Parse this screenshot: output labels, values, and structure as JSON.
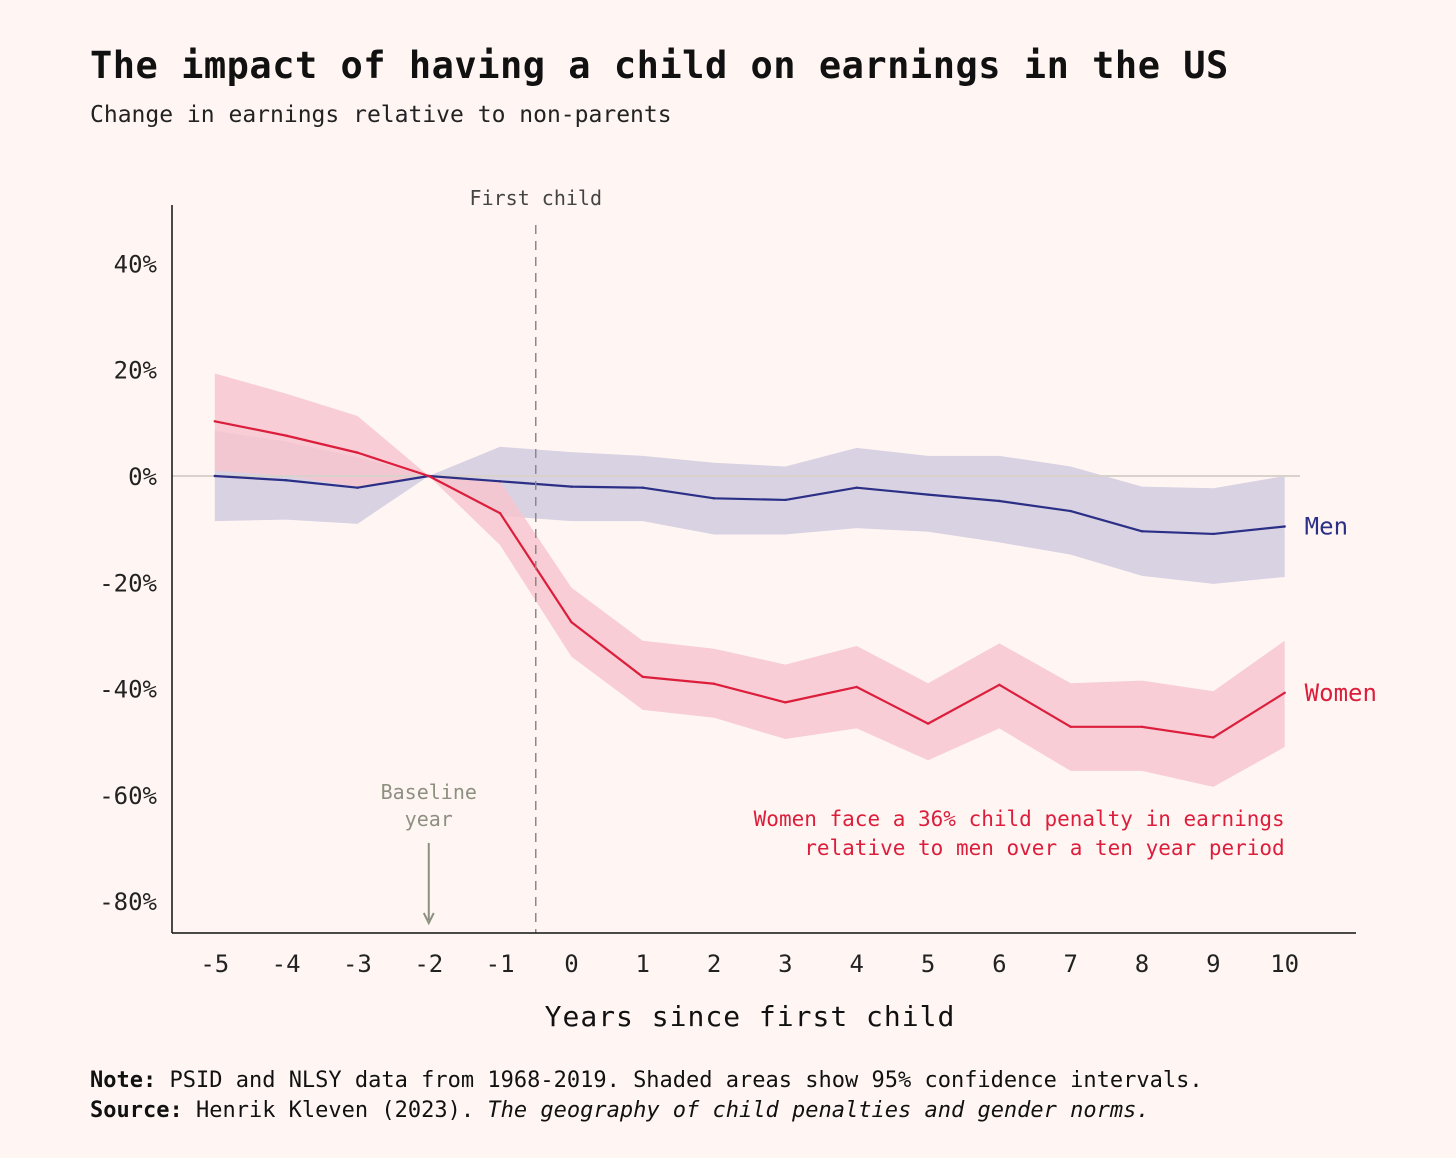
{
  "header": {
    "title": "The impact of having a child on earnings in the US",
    "subtitle": "Change in earnings relative to non-parents"
  },
  "footer": {
    "note_label": "Note:",
    "note_text": "PSID and NLSY data from 1968-2019. Shaded areas show 95% confidence intervals.",
    "source_label": "Source:",
    "source_text": "Henrik Kleven (2023).",
    "source_title": "The geography of child penalties and gender norms."
  },
  "chart_data": {
    "type": "line",
    "xlabel": "Years since first child",
    "ylabel": "",
    "x": [
      -5,
      -4,
      -3,
      -2,
      -1,
      0,
      1,
      2,
      3,
      4,
      5,
      6,
      7,
      8,
      9,
      10
    ],
    "xlim": [
      -5.6,
      11.0
    ],
    "ylim": [
      -86,
      51
    ],
    "yticks": [
      40,
      20,
      0,
      -20,
      -40,
      -60,
      -80
    ],
    "ytick_labels": [
      "40%",
      "20%",
      "0%",
      "-20%",
      "-40%",
      "-60%",
      "-80%"
    ],
    "xtick_labels": [
      "-5",
      "-4",
      "-3",
      "-2",
      "-1",
      "0",
      "1",
      "2",
      "3",
      "4",
      "5",
      "6",
      "7",
      "8",
      "9",
      "10"
    ],
    "grid": false,
    "zero_line": true,
    "series": [
      {
        "name": "Men",
        "color": "#2b2f86",
        "band_color": "#d6d0e2",
        "values": [
          0,
          -0.8,
          -2.2,
          0,
          -1,
          -2,
          -2.2,
          -4.2,
          -4.5,
          -2.2,
          -3.5,
          -4.7,
          -6.6,
          -10.4,
          -10.9,
          -9.5
        ],
        "upper": [
          8.5,
          6.5,
          3.5,
          0,
          5.5,
          4.5,
          3.8,
          2.5,
          1.8,
          5.3,
          3.8,
          3.8,
          1.8,
          -2,
          -2.3,
          0
        ],
        "lower": [
          -8.5,
          -8.2,
          -9,
          0,
          -7.5,
          -8.5,
          -8.5,
          -11,
          -11,
          -9.8,
          -10.5,
          -12.5,
          -14.8,
          -18.8,
          -20.3,
          -19
        ]
      },
      {
        "name": "Women",
        "color": "#dc1e3c",
        "band_color": "#f7c6cf",
        "values": [
          10.3,
          7.6,
          4.4,
          0,
          -7,
          -27.5,
          -37.8,
          -39.1,
          -42.6,
          -39.7,
          -46.6,
          -39.3,
          -47.2,
          -47.2,
          -49.2,
          -40.8
        ],
        "upper": [
          19.3,
          15.5,
          11.3,
          0,
          -1,
          -21,
          -31,
          -32.5,
          -35.5,
          -32,
          -39,
          -31.5,
          -39,
          -38.5,
          -40.5,
          -31
        ],
        "lower": [
          1,
          0,
          -2,
          0,
          -13,
          -34,
          -44,
          -45.5,
          -49.5,
          -47.5,
          -53.5,
          -47.5,
          -55.5,
          -55.5,
          -58.5,
          -51
        ]
      }
    ],
    "annotations": {
      "first_child": {
        "label": "First child",
        "x": -0.5
      },
      "baseline": {
        "line1": "Baseline",
        "line2": "year",
        "x": -2
      },
      "callout": {
        "line1": "Women face a 36% child penalty in earnings",
        "line2": "relative to men over a ten year period"
      }
    },
    "colors": {
      "axis": "#111111",
      "zero_line": "#d9d2cc",
      "first_child_line": "#8a8a8a",
      "baseline_text": "#8d9080",
      "callout_text": "#dc1e3c"
    }
  }
}
